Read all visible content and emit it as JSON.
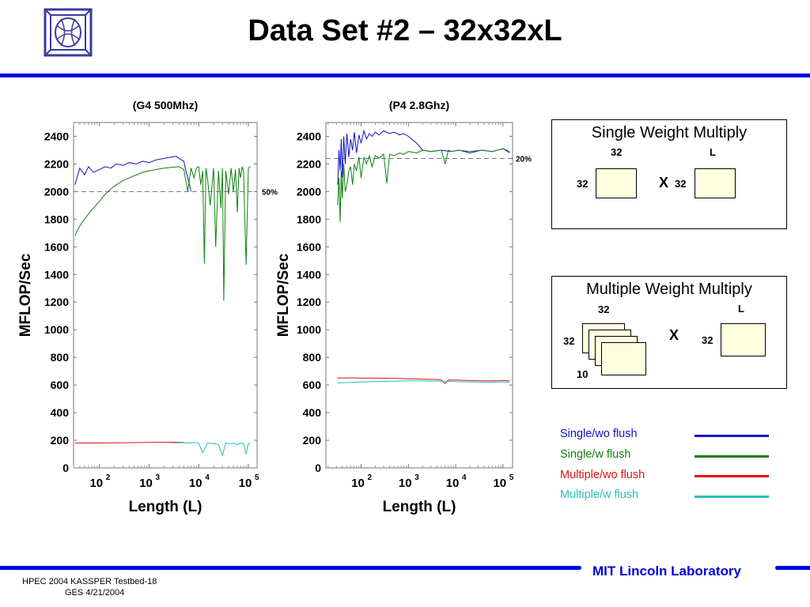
{
  "page": {
    "title": "Data Set #2 – 32x32xL",
    "footer_left_line1": "HPEC 2004 KASSPER Testbed-18",
    "footer_left_line2": "GES 4/21/2004",
    "footer_right": "MIT Lincoln Laboratory",
    "logo_icon": "mit-ll-logo-icon",
    "colors": {
      "accent_blue": "#0000e0",
      "single_wo": "#1010c8",
      "single_w": "#108010",
      "multi_wo": "#e01010",
      "multi_w": "#20c0c0"
    }
  },
  "diagram_single": {
    "title": "Single Weight Multiply",
    "cols_a": "32",
    "cols_b": "L",
    "rows_a": "32",
    "op": "X",
    "rows_b": "32"
  },
  "diagram_multiple": {
    "title": "Multiple Weight Multiply",
    "cols_a": "32",
    "cols_b": "L",
    "rows_a": "32",
    "depth": "10",
    "op": "X",
    "rows_b": "32"
  },
  "legend": [
    {
      "label": "Single/wo flush",
      "color": "#1010c8"
    },
    {
      "label": "Single/w flush",
      "color": "#108010"
    },
    {
      "label": "Multiple/wo flush",
      "color": "#e01010"
    },
    {
      "label": "Multiple/w flush",
      "color": "#20c0c0"
    }
  ],
  "chart_data": [
    {
      "type": "line",
      "title": "(G4 500Mhz)",
      "xlabel": "Length (L)",
      "ylabel": "MFLOP/Sec",
      "xscale": "log",
      "xlim": [
        30,
        150000
      ],
      "ylim": [
        0,
        2500
      ],
      "yticks": [
        0,
        200,
        400,
        600,
        800,
        1000,
        1200,
        1400,
        1600,
        1800,
        2000,
        2200,
        2400
      ],
      "xticks": [
        {
          "value": 100,
          "base": "10",
          "exp": "2"
        },
        {
          "value": 1000,
          "base": "10",
          "exp": "3"
        },
        {
          "value": 10000,
          "base": "10",
          "exp": "4"
        },
        {
          "value": 100000,
          "base": "10",
          "exp": "5"
        }
      ],
      "reference": {
        "y": 2000,
        "label": "50%"
      },
      "grid": false,
      "series": [
        {
          "name": "Single/wo flush",
          "color": "#1010c8",
          "x": [
            32,
            40,
            50,
            60,
            75,
            100,
            130,
            170,
            220,
            300,
            400,
            550,
            750,
            1000,
            1400,
            2000,
            2800,
            3500,
            4000,
            4500,
            5000,
            5500,
            6000,
            6500,
            7000
          ],
          "y": [
            2050,
            2170,
            2120,
            2180,
            2140,
            2160,
            2180,
            2170,
            2200,
            2190,
            2210,
            2200,
            2220,
            2210,
            2230,
            2240,
            2250,
            2255,
            2240,
            2230,
            2220,
            2150,
            2100,
            2050,
            2000
          ]
        },
        {
          "name": "Single/w flush",
          "color": "#108010",
          "x": [
            32,
            36,
            40,
            45,
            50,
            60,
            75,
            100,
            130,
            170,
            220,
            300,
            400,
            550,
            750,
            1000,
            1400,
            2000,
            2800,
            4000,
            5000,
            6000,
            7000,
            8000,
            9000,
            10000,
            11000,
            12000,
            13000,
            14000,
            15000,
            17000,
            20000,
            22000,
            25000,
            28000,
            30000,
            32000,
            35000,
            40000,
            45000,
            50000,
            55000,
            60000,
            65000,
            70000,
            75000,
            80000,
            90000,
            100000,
            110000
          ],
          "y": [
            1680,
            1720,
            1750,
            1780,
            1800,
            1840,
            1880,
            1930,
            1980,
            2020,
            2050,
            2080,
            2100,
            2120,
            2140,
            2150,
            2160,
            2170,
            2175,
            2180,
            2160,
            2000,
            2170,
            2100,
            2170,
            2180,
            2050,
            2150,
            1480,
            2170,
            2100,
            1900,
            2170,
            1600,
            2150,
            1880,
            2170,
            1210,
            2150,
            1980,
            2170,
            2000,
            2160,
            1850,
            2170,
            2100,
            2180,
            2150,
            1470,
            2170,
            2180
          ]
        },
        {
          "name": "Multiple/wo flush",
          "color": "#e01010",
          "x": [
            32,
            100,
            300,
            1000,
            3000,
            5000
          ],
          "y": [
            180,
            180,
            182,
            185,
            186,
            184
          ]
        },
        {
          "name": "Multiple/w flush",
          "color": "#20c0c0",
          "x": [
            3000,
            5000,
            7000,
            8000,
            10000,
            12000,
            15000,
            20000,
            25000,
            30000,
            35000,
            40000,
            50000,
            60000,
            70000,
            80000,
            90000,
            100000,
            110000
          ],
          "y": [
            182,
            182,
            180,
            185,
            178,
            110,
            180,
            175,
            170,
            90,
            180,
            175,
            178,
            170,
            180,
            175,
            100,
            175,
            180
          ]
        }
      ]
    },
    {
      "type": "line",
      "title": "(P4 2.8Ghz)",
      "xlabel": "Length (L)",
      "ylabel": "MFLOP/Sec",
      "xscale": "log",
      "xlim": [
        18,
        160000
      ],
      "ylim": [
        0,
        2500
      ],
      "yticks": [
        0,
        200,
        400,
        600,
        800,
        1000,
        1200,
        1400,
        1600,
        1800,
        2000,
        2200,
        2400
      ],
      "xticks": [
        {
          "value": 100,
          "base": "10",
          "exp": "2"
        },
        {
          "value": 1000,
          "base": "10",
          "exp": "3"
        },
        {
          "value": 10000,
          "base": "10",
          "exp": "4"
        },
        {
          "value": 100000,
          "base": "10",
          "exp": "5"
        }
      ],
      "reference": {
        "y": 2240,
        "label": "20%"
      },
      "grid": false,
      "series": [
        {
          "name": "Single/wo flush",
          "color": "#1010c8",
          "x": [
            32,
            34,
            36,
            38,
            40,
            43,
            46,
            50,
            55,
            60,
            66,
            72,
            80,
            90,
            100,
            115,
            130,
            150,
            170,
            200,
            240,
            300,
            400,
            500,
            650,
            800,
            1000,
            1500,
            2000,
            3000,
            5000,
            8000,
            12000,
            20000,
            35000,
            60000,
            100000,
            140000
          ],
          "y": [
            2050,
            2300,
            2150,
            2380,
            2100,
            2400,
            2200,
            2420,
            2250,
            2380,
            2300,
            2430,
            2280,
            2410,
            2350,
            2440,
            2380,
            2420,
            2400,
            2430,
            2410,
            2440,
            2420,
            2430,
            2410,
            2420,
            2400,
            2350,
            2300,
            2290,
            2300,
            2290,
            2300,
            2280,
            2300,
            2290,
            2310,
            2280
          ]
        },
        {
          "name": "Single/w flush",
          "color": "#108010",
          "x": [
            32,
            34,
            36,
            38,
            40,
            43,
            46,
            50,
            55,
            60,
            66,
            72,
            80,
            90,
            100,
            115,
            130,
            150,
            170,
            200,
            240,
            300,
            350,
            400,
            500,
            650,
            800,
            1000,
            1500,
            2000,
            3000,
            5000,
            6000,
            7000,
            8000,
            12000,
            20000,
            35000,
            60000,
            100000,
            140000
          ],
          "y": [
            1900,
            2100,
            1780,
            2150,
            1950,
            2200,
            2000,
            2050,
            2150,
            2180,
            2050,
            2200,
            2150,
            2250,
            2100,
            2250,
            2200,
            2260,
            2180,
            2260,
            2240,
            2270,
            2060,
            2270,
            2260,
            2280,
            2270,
            2290,
            2280,
            2300,
            2290,
            2300,
            2200,
            2300,
            2290,
            2300,
            2290,
            2300,
            2290,
            2310,
            2290
          ]
        },
        {
          "name": "Multiple/wo flush",
          "color": "#e01010",
          "x": [
            32,
            50,
            100,
            200,
            500,
            1000,
            2000,
            4000,
            5000,
            6000,
            7000,
            8000,
            10000,
            20000,
            50000,
            100000,
            140000
          ],
          "y": [
            650,
            652,
            650,
            650,
            648,
            645,
            642,
            640,
            636,
            610,
            638,
            635,
            636,
            632,
            630,
            632,
            630
          ]
        },
        {
          "name": "Multiple/w flush",
          "color": "#20c0c0",
          "x": [
            32,
            50,
            100,
            200,
            500,
            1000,
            2000,
            5000,
            10000,
            20000,
            50000,
            100000,
            140000
          ],
          "y": [
            615,
            618,
            622,
            625,
            628,
            630,
            630,
            628,
            625,
            622,
            620,
            622,
            620
          ]
        }
      ]
    }
  ]
}
